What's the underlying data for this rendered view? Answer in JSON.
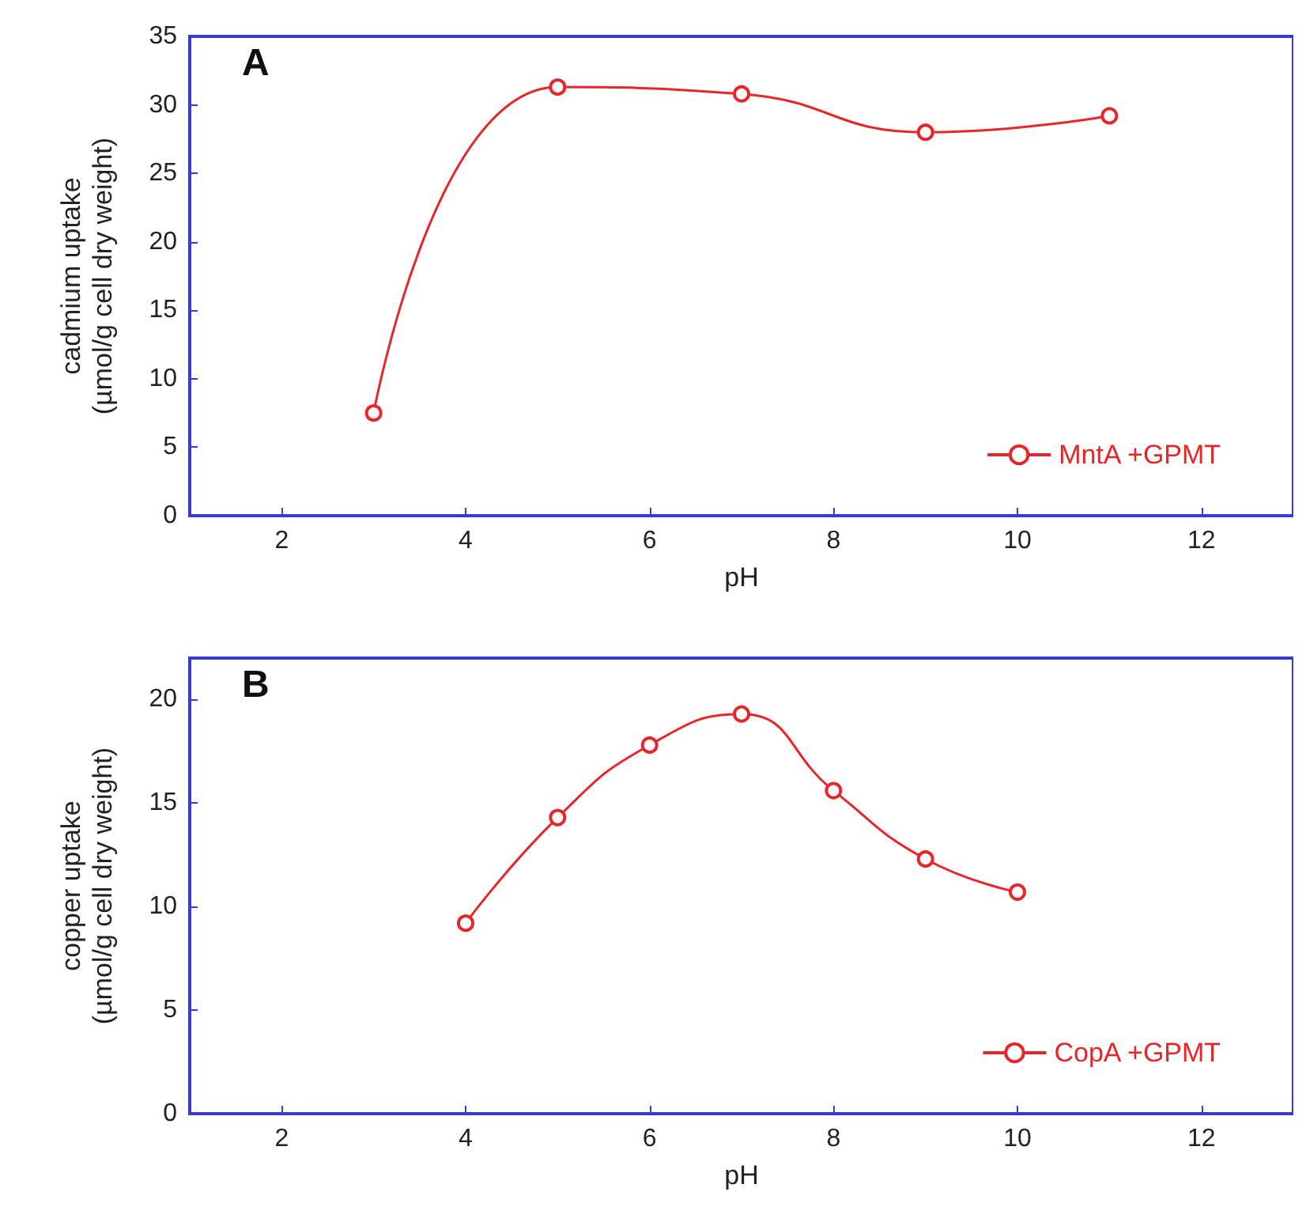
{
  "chart_data": [
    {
      "type": "line",
      "ylabel": "cadmium uptake\n(µmol/g cell dry weight)",
      "xlabel": "pH",
      "annotations": [
        "A"
      ],
      "xlim": [
        1,
        13
      ],
      "xticks": [
        2,
        4,
        6,
        8,
        10,
        12
      ],
      "ylim": [
        0,
        35
      ],
      "yticks": [
        0,
        5,
        10,
        15,
        20,
        25,
        30,
        35
      ],
      "marker": "circle",
      "legend": "bottom right",
      "series": [
        {
          "name": "MntA +GPMT",
          "color": "#e8262a",
          "x": [
            3,
            5,
            7,
            9,
            11
          ],
          "values": [
            7.5,
            31.3,
            30.8,
            28,
            29.2
          ]
        }
      ]
    },
    {
      "type": "line",
      "ylabel": "copper uptake\n(µmol/g cell dry weight)",
      "xlabel": "pH",
      "annotations": [
        "B"
      ],
      "xlim": [
        1,
        13
      ],
      "xticks": [
        2,
        4,
        6,
        8,
        10,
        12
      ],
      "ylim": [
        0,
        22
      ],
      "yticks": [
        0,
        5,
        10,
        15,
        20
      ],
      "marker": "circle",
      "legend": "bottom right",
      "series": [
        {
          "name": "CopA +GPMT",
          "color": "#e8262a",
          "x": [
            4,
            5,
            6,
            7,
            8,
            9,
            10
          ],
          "values": [
            9.2,
            14.3,
            17.8,
            19.3,
            15.6,
            12.3,
            10.7
          ]
        }
      ]
    }
  ]
}
